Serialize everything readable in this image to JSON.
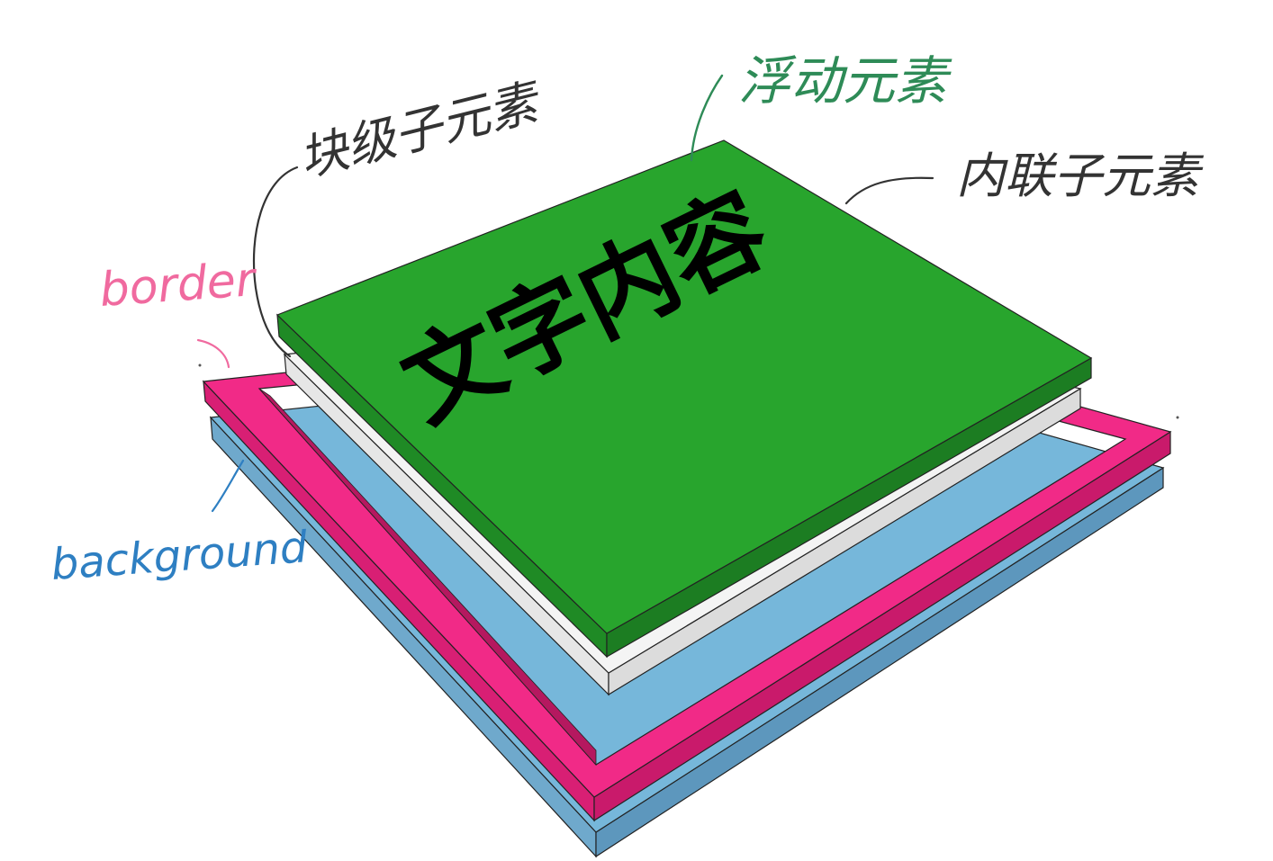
{
  "labels": {
    "block_child": "块级子元素",
    "float_element": "浮动元素",
    "inline_child": "内联子元素",
    "border": "border",
    "background": "background",
    "text_content": "文字内容"
  },
  "colors": {
    "background_layer": "#76b7da",
    "border_layer": "#f12a87",
    "block_layer": "#f2f2f2",
    "float_layer": "#28a52d",
    "text": "#000000",
    "border_label": "#f06a9f",
    "background_label": "#2e7fc2",
    "float_label": "#2e8b57",
    "annotation": "#333333"
  }
}
